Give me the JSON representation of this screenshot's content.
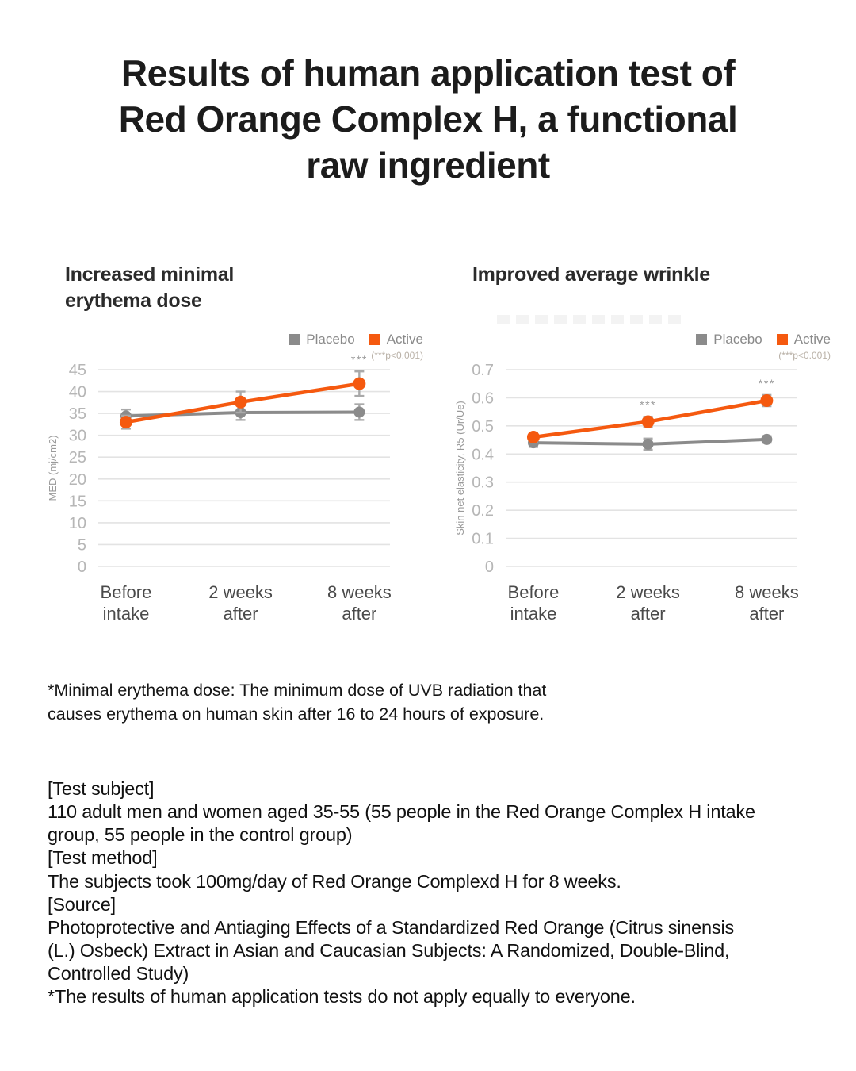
{
  "page_title": "Results of human application test of\nRed Orange Complex H, a functional\nraw ingredient",
  "footnote": "*Minimal erythema dose: The minimum dose of UVB radiation that\ncauses erythema on human skin after 16 to 24 hours of exposure.",
  "info_text": "[Test subject]\n110 adult men and women aged 35-55 (55 people in the Red Orange Complex H intake\ngroup, 55 people in the control group)\n[Test method]\nThe subjects took 100mg/day of Red Orange Complexd H for 8 weeks.\n[Source]\nPhotoprotective and Antiaging Effects of a Standardized Red Orange (Citrus sinensis\n(L.) Osbeck) Extract in Asian and Caucasian Subjects: A Randomized, Double-Blind,\nControlled Study)\n*The results of human application tests do not apply equally to everyone.",
  "colors": {
    "active_orange": "#F5590F",
    "placebo_gray": "#8B8B8B",
    "error_bar_gray": "#A9A9A9",
    "gridline_gray": "#E3E3E3"
  },
  "chart_data": [
    {
      "type": "line",
      "title": "Increased minimal\nerythema dose",
      "ylabel": "MED (mj/cm2)",
      "ylim": [
        0,
        45
      ],
      "yticks": [
        0,
        5,
        10,
        15,
        20,
        25,
        30,
        35,
        40,
        45
      ],
      "grid": true,
      "legend_position": "top-right",
      "legend": {
        "placebo": "Placebo",
        "active": "Active",
        "note": "(***p<0.001)"
      },
      "categories": [
        [
          "Before",
          "intake"
        ],
        [
          "2 weeks",
          "after"
        ],
        [
          "8 weeks",
          "after"
        ]
      ],
      "series": [
        {
          "name": "Placebo",
          "color": "#8B8B8B",
          "values": [
            34.4,
            35.2,
            35.3
          ],
          "errors": [
            1.5,
            1.7,
            1.8
          ],
          "sig": [
            "",
            "",
            ""
          ]
        },
        {
          "name": "Active",
          "color": "#F5590F",
          "values": [
            33.0,
            37.6,
            41.8
          ],
          "errors": [
            1.5,
            2.4,
            2.8
          ],
          "sig": [
            "",
            "",
            "***"
          ]
        }
      ]
    },
    {
      "type": "line",
      "title": "Improved average wrinkle",
      "ylabel": "Skin net elasticity, R5 (Ur/Ue)",
      "ylim": [
        0,
        0.7
      ],
      "yticks": [
        0,
        0.1,
        0.2,
        0.3,
        0.4,
        0.5,
        0.6,
        0.7
      ],
      "grid": true,
      "legend_position": "top-right",
      "legend": {
        "placebo": "Placebo",
        "active": "Active",
        "note": "(***p<0.001)"
      },
      "categories": [
        [
          "Before",
          "intake"
        ],
        [
          "2 weeks",
          "after"
        ],
        [
          "8 weeks",
          "after"
        ]
      ],
      "series": [
        {
          "name": "Placebo",
          "color": "#8B8B8B",
          "values": [
            0.44,
            0.435,
            0.452
          ],
          "errors": [
            0.015,
            0.02,
            0.012
          ],
          "sig": [
            "",
            "",
            ""
          ]
        },
        {
          "name": "Active",
          "color": "#F5590F",
          "values": [
            0.46,
            0.515,
            0.59
          ],
          "errors": [
            0.015,
            0.018,
            0.02
          ],
          "sig": [
            "",
            "***",
            "***"
          ]
        }
      ]
    }
  ]
}
